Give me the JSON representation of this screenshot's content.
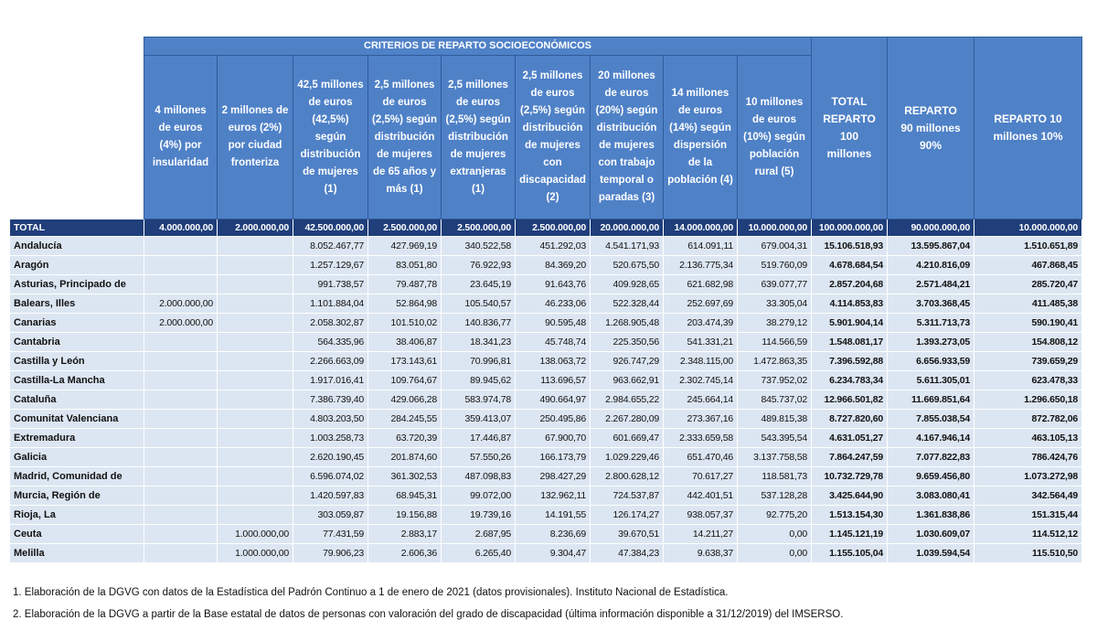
{
  "table": {
    "group_header": "CRITERIOS DE REPARTO SOCIOECONÓMICOS",
    "columns": [
      "4 millones de euros (4%) por insularidad",
      "2 millones de euros (2%) por ciudad fronteriza",
      "42,5 millones de euros (42,5%) según distribución de mujeres (1)",
      "2,5 millones de euros (2,5%) según distribución de mujeres de 65 años y más (1)",
      "2,5 millones de euros (2,5%) según distribución de mujeres extranjeras (1)",
      "2,5 millones de euros (2,5%) según distribución de mujeres con discapacidad (2)",
      "20 millones de euros (20%) según distribución de mujeres con trabajo temporal o paradas (3)",
      "14 millones de euros (14%) según dispersión de la población (4)",
      "10 millones de euros (10%) según población rural (5)",
      "TOTAL REPARTO 100 millones",
      "REPARTO 90 millones 90%",
      "REPARTO 10 millones 10%"
    ],
    "total": {
      "label": "TOTAL",
      "values": [
        "4.000.000,00",
        "2.000.000,00",
        "42.500.000,00",
        "2.500.000,00",
        "2.500.000,00",
        "2.500.000,00",
        "20.000.000,00",
        "14.000.000,00",
        "10.000.000,00",
        "100.000.000,00",
        "90.000.000,00",
        "10.000.000,00"
      ]
    },
    "rows": [
      {
        "label": "Andalucía",
        "values": [
          null,
          null,
          "8.052.467,77",
          "427.969,19",
          "340.522,58",
          "451.292,03",
          "4.541.171,93",
          "614.091,11",
          "679.004,31",
          "15.106.518,93",
          "13.595.867,04",
          "1.510.651,89"
        ]
      },
      {
        "label": "Aragón",
        "values": [
          null,
          null,
          "1.257.129,67",
          "83.051,80",
          "76.922,93",
          "84.369,20",
          "520.675,50",
          "2.136.775,34",
          "519.760,09",
          "4.678.684,54",
          "4.210.816,09",
          "467.868,45"
        ]
      },
      {
        "label": "Asturias, Principado de",
        "values": [
          null,
          null,
          "991.738,57",
          "79.487,78",
          "23.645,19",
          "91.643,76",
          "409.928,65",
          "621.682,98",
          "639.077,77",
          "2.857.204,68",
          "2.571.484,21",
          "285.720,47"
        ]
      },
      {
        "label": "Balears, Illes",
        "values": [
          "2.000.000,00",
          null,
          "1.101.884,04",
          "52.864,98",
          "105.540,57",
          "46.233,06",
          "522.328,44",
          "252.697,69",
          "33.305,04",
          "4.114.853,83",
          "3.703.368,45",
          "411.485,38"
        ]
      },
      {
        "label": "Canarias",
        "values": [
          "2.000.000,00",
          null,
          "2.058.302,87",
          "101.510,02",
          "140.836,77",
          "90.595,48",
          "1.268.905,48",
          "203.474,39",
          "38.279,12",
          "5.901.904,14",
          "5.311.713,73",
          "590.190,41"
        ]
      },
      {
        "label": "Cantabria",
        "values": [
          null,
          null,
          "564.335,96",
          "38.406,87",
          "18.341,23",
          "45.748,74",
          "225.350,56",
          "541.331,21",
          "114.566,59",
          "1.548.081,17",
          "1.393.273,05",
          "154.808,12"
        ]
      },
      {
        "label": "Castilla y León",
        "values": [
          null,
          null,
          "2.266.663,09",
          "173.143,61",
          "70.996,81",
          "138.063,72",
          "926.747,29",
          "2.348.115,00",
          "1.472.863,35",
          "7.396.592,88",
          "6.656.933,59",
          "739.659,29"
        ]
      },
      {
        "label": "Castilla-La Mancha",
        "values": [
          null,
          null,
          "1.917.016,41",
          "109.764,67",
          "89.945,62",
          "113.696,57",
          "963.662,91",
          "2.302.745,14",
          "737.952,02",
          "6.234.783,34",
          "5.611.305,01",
          "623.478,33"
        ]
      },
      {
        "label": "Cataluña",
        "values": [
          null,
          null,
          "7.386.739,40",
          "429.066,28",
          "583.974,78",
          "490.664,97",
          "2.984.655,22",
          "245.664,14",
          "845.737,02",
          "12.966.501,82",
          "11.669.851,64",
          "1.296.650,18"
        ]
      },
      {
        "label": "Comunitat Valenciana",
        "values": [
          null,
          null,
          "4.803.203,50",
          "284.245,55",
          "359.413,07",
          "250.495,86",
          "2.267.280,09",
          "273.367,16",
          "489.815,38",
          "8.727.820,60",
          "7.855.038,54",
          "872.782,06"
        ]
      },
      {
        "label": "Extremadura",
        "values": [
          null,
          null,
          "1.003.258,73",
          "63.720,39",
          "17.446,87",
          "67.900,70",
          "601.669,47",
          "2.333.659,58",
          "543.395,54",
          "4.631.051,27",
          "4.167.946,14",
          "463.105,13"
        ]
      },
      {
        "label": "Galicia",
        "values": [
          null,
          null,
          "2.620.190,45",
          "201.874,60",
          "57.550,26",
          "166.173,79",
          "1.029.229,46",
          "651.470,46",
          "3.137.758,58",
          "7.864.247,59",
          "7.077.822,83",
          "786.424,76"
        ]
      },
      {
        "label": "Madrid, Comunidad de",
        "values": [
          null,
          null,
          "6.596.074,02",
          "361.302,53",
          "487.098,83",
          "298.427,29",
          "2.800.628,12",
          "70.617,27",
          "118.581,73",
          "10.732.729,78",
          "9.659.456,80",
          "1.073.272,98"
        ]
      },
      {
        "label": "Murcia, Región de",
        "values": [
          null,
          null,
          "1.420.597,83",
          "68.945,31",
          "99.072,00",
          "132.962,11",
          "724.537,87",
          "442.401,51",
          "537.128,28",
          "3.425.644,90",
          "3.083.080,41",
          "342.564,49"
        ]
      },
      {
        "label": "Rioja, La",
        "values": [
          null,
          null,
          "303.059,87",
          "19.156,88",
          "19.739,16",
          "14.191,55",
          "126.174,27",
          "938.057,37",
          "92.775,20",
          "1.513.154,30",
          "1.361.838,86",
          "151.315,44"
        ]
      },
      {
        "label": "Ceuta",
        "values": [
          null,
          "1.000.000,00",
          "77.431,59",
          "2.883,17",
          "2.687,95",
          "8.236,69",
          "39.670,51",
          "14.211,27",
          "0,00",
          "1.145.121,19",
          "1.030.609,07",
          "114.512,12"
        ]
      },
      {
        "label": "Melilla",
        "values": [
          null,
          "1.000.000,00",
          "79.906,23",
          "2.606,36",
          "6.265,40",
          "9.304,47",
          "47.384,23",
          "9.638,37",
          "0,00",
          "1.155.105,04",
          "1.039.594,54",
          "115.510,50"
        ]
      }
    ]
  },
  "footnotes": [
    "1. Elaboración de la DGVG con datos de la Estadística del Padrón Continuo a 1 de enero de 2021 (datos provisionales). Instituto Nacional de Estadística.",
    "2. Elaboración de la DGVG a partir de la Base estatal de datos de personas con valoración del grado de discapacidad (última información disponible a 31/12/2019) del IMSERSO."
  ]
}
